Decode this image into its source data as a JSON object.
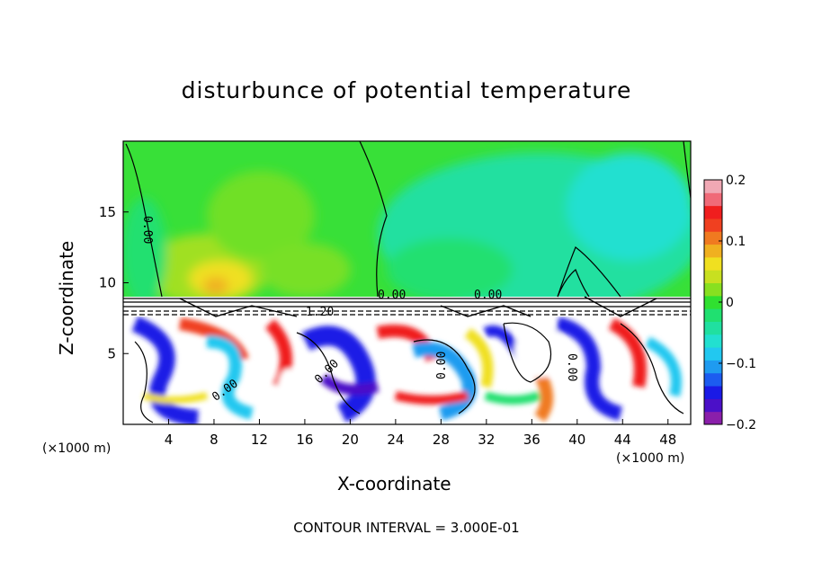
{
  "chart_data": {
    "type": "heatmap",
    "title": "disturbunce of potential temperature",
    "xlabel": "X-coordinate",
    "ylabel": "Z-coordinate",
    "x_unit_label_left": "(×1000 m)",
    "x_unit_label_right": "(×1000 m)",
    "x_ticks": [
      "4",
      "8",
      "12",
      "16",
      "20",
      "24",
      "28",
      "32",
      "36",
      "40",
      "44",
      "48"
    ],
    "y_ticks": [
      "5",
      "10",
      "15"
    ],
    "xlim": [
      0,
      50
    ],
    "ylim": [
      0,
      20
    ],
    "colorbar": {
      "ticks": [
        "0.2",
        "0.1",
        "0",
        "−0.1",
        "−0.2"
      ],
      "range": [
        -0.2,
        0.2
      ],
      "colors": [
        "#8a1faa",
        "#4b10c8",
        "#1a1ae6",
        "#1c5cf0",
        "#1f9bf0",
        "#22c8f0",
        "#22e0d0",
        "#20e0a0",
        "#20e070",
        "#30e030",
        "#88e020",
        "#c8e020",
        "#f0e020",
        "#f0b020",
        "#f07a20",
        "#f04020",
        "#f01e1e",
        "#f06a78",
        "#f0a8b4"
      ],
      "position": "right"
    },
    "contour_labels": [
      "0.00",
      "0.00",
      "0.00",
      "0.00",
      "0.00",
      "0.00",
      "0.00",
      "1.20"
    ],
    "footer": "CONTOUR INTERVAL = 3.000E-01"
  }
}
